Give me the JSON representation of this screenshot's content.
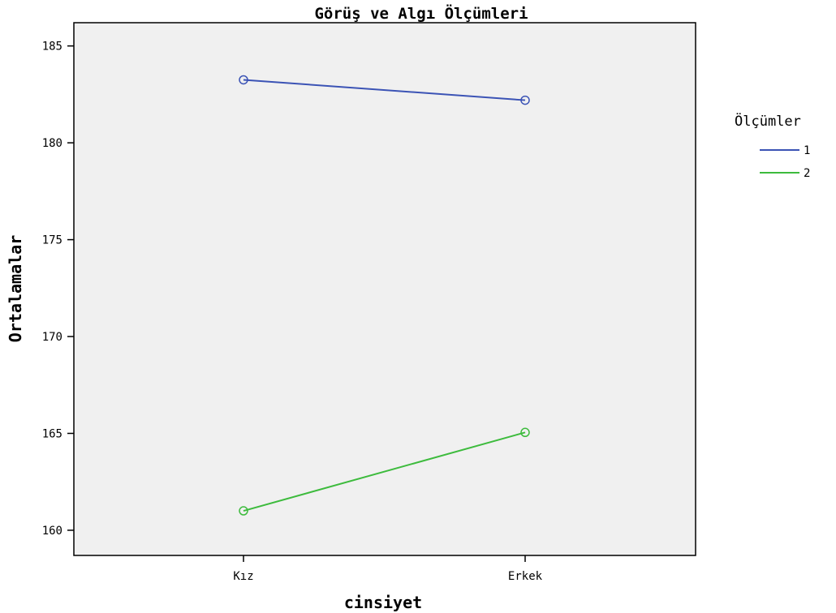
{
  "chart_data": {
    "type": "line",
    "title": "Görüş ve Algı Ölçümleri",
    "xlabel": "cinsiyet",
    "ylabel": "Ortalamalar",
    "categories": [
      "Kız",
      "Erkek"
    ],
    "ylim": [
      158.7,
      186.2
    ],
    "yticks": [
      160,
      165,
      170,
      175,
      180,
      185
    ],
    "legend": {
      "title": "Ölçümler",
      "position": "right"
    },
    "grid": false,
    "series": [
      {
        "name": "1",
        "color": "#3b53b5",
        "values": [
          183.25,
          182.2
        ]
      },
      {
        "name": "2",
        "color": "#3dbb3d",
        "values": [
          161.0,
          165.05
        ]
      }
    ]
  }
}
